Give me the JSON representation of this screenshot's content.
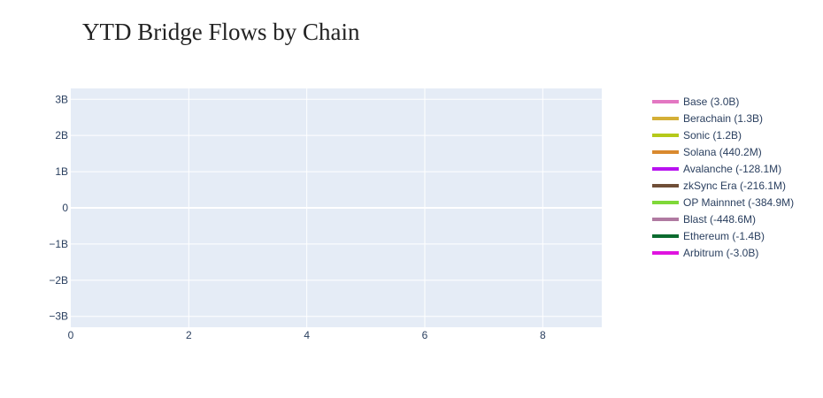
{
  "chart_data": {
    "type": "line",
    "title": "YTD Bridge Flows by Chain",
    "xlabel": "",
    "ylabel": "",
    "xlim": [
      0,
      9
    ],
    "ylim": [
      -3.3,
      3.3
    ],
    "x_ticks": [
      {
        "value": 0,
        "label": "0"
      },
      {
        "value": 2,
        "label": "2"
      },
      {
        "value": 4,
        "label": "4"
      },
      {
        "value": 6,
        "label": "6"
      },
      {
        "value": 8,
        "label": "8"
      }
    ],
    "y_ticks": [
      {
        "value": 3,
        "label": "3B"
      },
      {
        "value": 2,
        "label": "2B"
      },
      {
        "value": 1,
        "label": "1B"
      },
      {
        "value": 0,
        "label": "0"
      },
      {
        "value": -1,
        "label": "−1B"
      },
      {
        "value": -2,
        "label": "−2B"
      },
      {
        "value": -3,
        "label": "−3B"
      }
    ],
    "grid": true,
    "legend_position": "right",
    "plot_background": "#e5ecf6",
    "series": [
      {
        "name": "Base (3.0B)",
        "color": "#e377c2",
        "values": []
      },
      {
        "name": "Berachain (1.3B)",
        "color": "#d4af37",
        "values": []
      },
      {
        "name": "Sonic (1.2B)",
        "color": "#b5c91a",
        "values": []
      },
      {
        "name": "Solana (440.2M)",
        "color": "#d9892e",
        "values": []
      },
      {
        "name": "Avalanche (-128.1M)",
        "color": "#b812f0",
        "values": []
      },
      {
        "name": "zkSync Era (-216.1M)",
        "color": "#6f4e37",
        "values": []
      },
      {
        "name": "OP Mainnnet (-384.9M)",
        "color": "#7fd838",
        "values": []
      },
      {
        "name": "Blast (-448.6M)",
        "color": "#b07aa1",
        "values": []
      },
      {
        "name": "Ethereum (-1.4B)",
        "color": "#0b6b2f",
        "values": []
      },
      {
        "name": "Arbitrum (-3.0B)",
        "color": "#e014e0",
        "values": []
      }
    ]
  }
}
